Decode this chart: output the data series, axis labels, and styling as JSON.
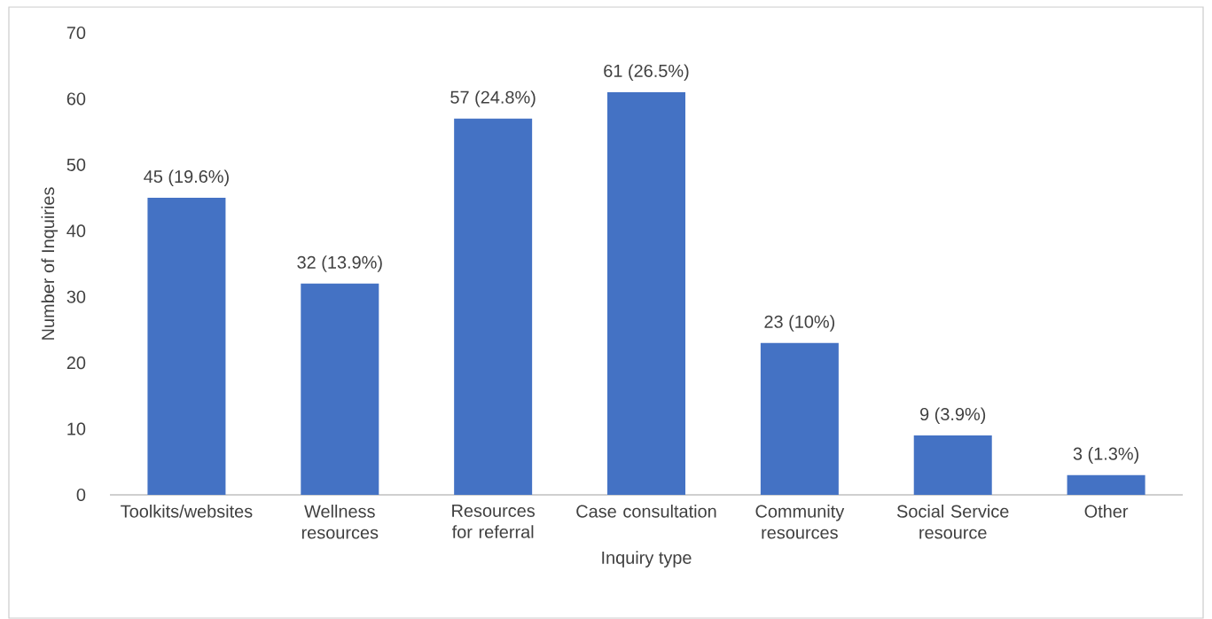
{
  "chart_data": {
    "type": "bar",
    "xlabel": "Inquiry type",
    "ylabel": "Number of Inquiries",
    "categories": [
      "Toolkits/websites",
      "Wellness resources",
      "Resources for referral",
      "Case consultation",
      "Community resources",
      "Social Service resource",
      "Other"
    ],
    "values": [
      45,
      32,
      57,
      61,
      23,
      9,
      3
    ],
    "value_labels": [
      "45 (19.6%)",
      "32 (13.9%)",
      "57 (24.8%)",
      "61 (26.5%)",
      "23 (10%)",
      "9 (3.9%)",
      "3 (1.3%)"
    ],
    "color": "#4472c4",
    "ylim": [
      0,
      70
    ],
    "yticks": [
      0,
      10,
      20,
      30,
      40,
      50,
      60,
      70
    ],
    "grid": false
  }
}
